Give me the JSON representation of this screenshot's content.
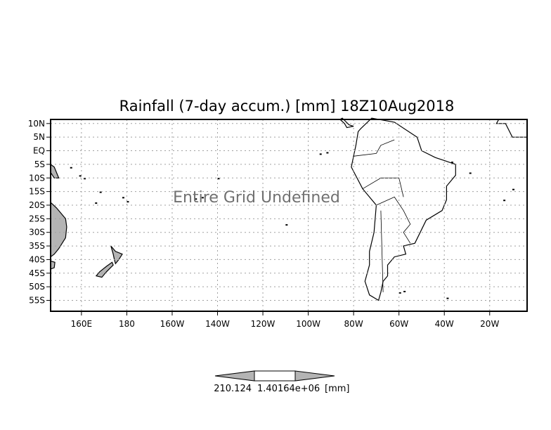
{
  "chart_data": {
    "type": "heatmap",
    "title": "Rainfall (7-day accum.) [mm] 18Z10Aug2018",
    "annotation": "Entire Grid Undefined",
    "xlabel": "",
    "ylabel": "",
    "x_tick_labels": [
      {
        "lon": 160,
        "label": "160E"
      },
      {
        "lon": 180,
        "label": "180"
      },
      {
        "lon": 200,
        "label": "160W"
      },
      {
        "lon": 220,
        "label": "140W"
      },
      {
        "lon": 240,
        "label": "120W"
      },
      {
        "lon": 260,
        "label": "100W"
      },
      {
        "lon": 280,
        "label": "80W"
      },
      {
        "lon": 300,
        "label": "60W"
      },
      {
        "lon": 320,
        "label": "40W"
      },
      {
        "lon": 340,
        "label": "20W"
      }
    ],
    "y_tick_labels": [
      {
        "lat": 10,
        "label": "10N"
      },
      {
        "lat": 5,
        "label": "5N"
      },
      {
        "lat": 0,
        "label": "EQ"
      },
      {
        "lat": -5,
        "label": "5S"
      },
      {
        "lat": -10,
        "label": "10S"
      },
      {
        "lat": -15,
        "label": "15S"
      },
      {
        "lat": -20,
        "label": "20S"
      },
      {
        "lat": -25,
        "label": "25S"
      },
      {
        "lat": -30,
        "label": "30S"
      },
      {
        "lat": -35,
        "label": "35S"
      },
      {
        "lat": -40,
        "label": "40S"
      },
      {
        "lat": -45,
        "label": "45S"
      },
      {
        "lat": -50,
        "label": "50S"
      },
      {
        "lat": -55,
        "label": "55S"
      }
    ],
    "xlim": [
      146.4,
      356.5
    ],
    "ylim": [
      -59,
      11.5
    ],
    "grid": true,
    "colorbar": {
      "labels": [
        "210.124",
        "1.40164e+06"
      ],
      "units": "[mm]",
      "colors": [
        "#b4b4b4",
        "#ffffff",
        "#b4b4b4"
      ]
    },
    "colors": {
      "land": "#b4b4b4",
      "grid": "#a0a0a0",
      "annotation": "#707070"
    }
  }
}
